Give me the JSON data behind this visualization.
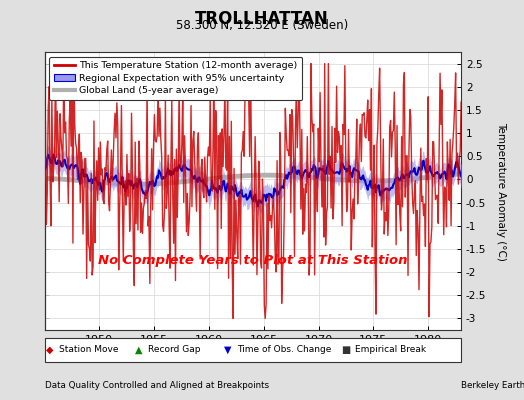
{
  "title": "TROLLHATTAN",
  "subtitle": "58.300 N, 12.320 E (Sweden)",
  "ylabel": "Temperature Anomaly (°C)",
  "xlabel_note": "Data Quality Controlled and Aligned at Breakpoints",
  "credit": "Berkeley Earth",
  "no_data_text": "No Complete Years to Plot at This Station",
  "year_start": 1945.0,
  "year_end": 1983.0,
  "ylim": [
    -3.25,
    2.75
  ],
  "yticks": [
    -3,
    -2.5,
    -2,
    -1.5,
    -1,
    -0.5,
    0,
    0.5,
    1,
    1.5,
    2,
    2.5
  ],
  "xticks": [
    1950,
    1955,
    1960,
    1965,
    1970,
    1975,
    1980
  ],
  "bg_color": "#e0e0e0",
  "plot_bg_color": "#ffffff",
  "regional_color": "#0000cc",
  "regional_fill_color": "#9999ee",
  "station_color": "#cc0000",
  "global_color": "#b0b0b0",
  "global_linewidth": 3.5,
  "regional_linewidth": 1.5,
  "station_linewidth": 1.0,
  "seed": 17
}
